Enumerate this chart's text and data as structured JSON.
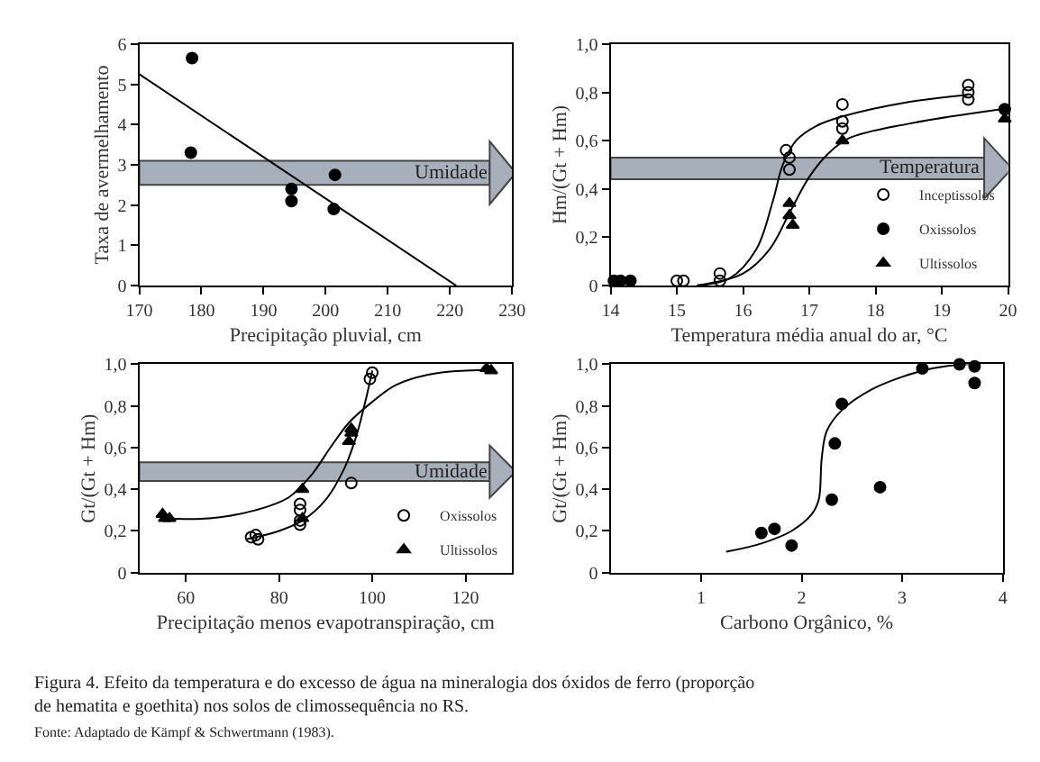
{
  "chart_data": [
    {
      "type": "scatter",
      "xlabel": "Precipitação pluvial, cm",
      "ylabel": "Taxa de avermelhamento",
      "xlim": [
        170,
        230
      ],
      "xticks": [
        170,
        180,
        190,
        200,
        210,
        220,
        230
      ],
      "ylim": [
        0,
        6
      ],
      "yticks": [
        0,
        1,
        2,
        3,
        4,
        5,
        6
      ],
      "grid": false,
      "legend": false,
      "series": [
        {
          "color": "#000000",
          "marker": "circle",
          "x": [
            178.5,
            178.3,
            194.5,
            194.5,
            201.5,
            201.3
          ],
          "values": [
            5.65,
            3.3,
            2.4,
            2.1,
            2.75,
            1.9
          ]
        },
        {
          "type": "line",
          "color": "#000000",
          "x": [
            170,
            221
          ],
          "values": [
            5.25,
            0
          ]
        }
      ],
      "bands": [
        {
          "axis": "y",
          "from": 2.5,
          "to": 3.1,
          "label": "Umidade",
          "color": "#a7afbb"
        }
      ]
    },
    {
      "type": "scatter",
      "xlabel": "Temperatura média anual do ar, °C",
      "ylabel": "Hm/(Gt + Hm)",
      "xlim": [
        14,
        20
      ],
      "xticks": [
        14,
        15,
        16,
        17,
        18,
        19,
        20
      ],
      "ylim": [
        0,
        1
      ],
      "yticks": [
        0,
        {
          "value": 0.2,
          "label": "0,2"
        },
        {
          "value": 0.4,
          "label": "0,4"
        },
        {
          "value": 0.6,
          "label": "0,6"
        },
        {
          "value": 0.8,
          "label": "0,8"
        },
        {
          "value": 1,
          "label": "1,0"
        }
      ],
      "grid": false,
      "legend": "bottom right",
      "series": [
        {
          "name": "Inceptissolos",
          "color": "#000000",
          "marker": "circle-open",
          "x": [
            15.0,
            15.1,
            15.65,
            15.65,
            16.65,
            16.7,
            16.7,
            17.5,
            17.5,
            17.5,
            19.4,
            19.4,
            19.4
          ],
          "values": [
            0.02,
            0.02,
            0.05,
            0.02,
            0.56,
            0.53,
            0.48,
            0.75,
            0.68,
            0.65,
            0.83,
            0.8,
            0.77
          ]
        },
        {
          "name": "Oxissolos",
          "color": "#000000",
          "marker": "circle",
          "x": [
            14.05,
            14.15,
            14.3,
            19.95
          ],
          "values": [
            0.02,
            0.02,
            0.02,
            0.73
          ]
        },
        {
          "name": "Ultissolos",
          "color": "#000000",
          "marker": "triangle",
          "x": [
            16.7,
            16.7,
            16.75,
            17.5,
            19.95
          ],
          "values": [
            0.34,
            0.29,
            0.25,
            0.6,
            0.69
          ]
        },
        {
          "type": "line",
          "color": "#000000",
          "x": [
            15.3,
            15.8,
            16.2,
            16.45,
            16.6,
            16.8,
            17.1,
            17.5,
            18.5,
            19.4
          ],
          "values": [
            0,
            0.03,
            0.15,
            0.35,
            0.5,
            0.6,
            0.66,
            0.7,
            0.76,
            0.79
          ]
        },
        {
          "type": "line",
          "color": "#000000",
          "x": [
            15.3,
            16.0,
            16.4,
            16.7,
            17.0,
            17.3,
            17.6,
            18.5,
            19.9
          ],
          "values": [
            0,
            0.05,
            0.15,
            0.3,
            0.45,
            0.55,
            0.61,
            0.67,
            0.73
          ]
        }
      ],
      "bands": [
        {
          "axis": "y",
          "from": 0.44,
          "to": 0.53,
          "label": "Temperatura",
          "color": "#a7afbb"
        }
      ]
    },
    {
      "type": "scatter",
      "xlabel": "Precipitação menos evapotranspiração, cm",
      "ylabel": "Gt/(Gt + Hm)",
      "xlim": [
        50,
        130
      ],
      "xticks": [
        60,
        80,
        100,
        120
      ],
      "ylim": [
        0,
        1
      ],
      "yticks": [
        0,
        {
          "value": 0.2,
          "label": "0,2"
        },
        {
          "value": 0.4,
          "label": "0,4"
        },
        {
          "value": 0.6,
          "label": "0,6"
        },
        {
          "value": 0.8,
          "label": "0,8"
        },
        {
          "value": 1,
          "label": "1,0"
        }
      ],
      "grid": false,
      "legend": "bottom right",
      "series": [
        {
          "name": "Oxissolos",
          "color": "#000000",
          "marker": "circle-open",
          "x": [
            74,
            75,
            75.5,
            84.5,
            84.5,
            84.5,
            84.5,
            95.5,
            99.5,
            100
          ],
          "values": [
            0.17,
            0.18,
            0.16,
            0.33,
            0.3,
            0.25,
            0.23,
            0.43,
            0.93,
            0.96
          ]
        },
        {
          "name": "Ultissolos",
          "color": "#000000",
          "marker": "triangle",
          "x": [
            55,
            55.5,
            56.5,
            85,
            85,
            95,
            95.5,
            95.5,
            124.5,
            125.5
          ],
          "values": [
            0.28,
            0.26,
            0.26,
            0.4,
            0.26,
            0.63,
            0.67,
            0.69,
            0.98,
            0.97
          ]
        },
        {
          "type": "line",
          "color": "#000000",
          "x": [
            73,
            80,
            85,
            90,
            94,
            96.5,
            98.5,
            100
          ],
          "values": [
            0.16,
            0.2,
            0.25,
            0.35,
            0.5,
            0.65,
            0.82,
            0.97
          ]
        },
        {
          "type": "line",
          "color": "#000000",
          "x": [
            55,
            65,
            75,
            82,
            87,
            91,
            95,
            100,
            105,
            112,
            120,
            126
          ],
          "values": [
            0.26,
            0.26,
            0.3,
            0.36,
            0.47,
            0.6,
            0.72,
            0.82,
            0.9,
            0.95,
            0.97,
            0.97
          ]
        }
      ],
      "bands": [
        {
          "axis": "y",
          "from": 0.44,
          "to": 0.53,
          "label": "Umidade",
          "color": "#a7afbb"
        }
      ]
    },
    {
      "type": "scatter",
      "xlabel": "Carbono Orgânico, %",
      "ylabel": "Gt/(Gt + Hm)",
      "xlim": [
        0.1,
        4
      ],
      "xticks": [
        1,
        2,
        3,
        4
      ],
      "ylim": [
        0,
        1
      ],
      "yticks": [
        0,
        {
          "value": 0.2,
          "label": "0,2"
        },
        {
          "value": 0.4,
          "label": "0,4"
        },
        {
          "value": 0.6,
          "label": "0,6"
        },
        {
          "value": 0.8,
          "label": "0,8"
        },
        {
          "value": 1,
          "label": "1,0"
        }
      ],
      "grid": false,
      "legend": false,
      "series": [
        {
          "color": "#000000",
          "marker": "circle",
          "x": [
            1.6,
            1.73,
            1.9,
            2.3,
            2.33,
            2.4,
            2.78,
            3.2,
            3.57,
            3.72,
            3.72
          ],
          "values": [
            0.19,
            0.21,
            0.13,
            0.35,
            0.62,
            0.81,
            0.41,
            0.98,
            1.0,
            0.99,
            0.91
          ]
        },
        {
          "type": "line",
          "color": "#000000",
          "x": [
            1.25,
            1.6,
            1.9,
            2.1,
            2.17,
            2.2,
            2.25,
            2.4,
            2.7,
            3.0,
            3.3,
            3.6,
            3.75
          ],
          "values": [
            0.1,
            0.14,
            0.2,
            0.28,
            0.35,
            0.55,
            0.68,
            0.78,
            0.88,
            0.94,
            0.98,
            1.0,
            1.0
          ]
        }
      ],
      "annotations": [
        "Figura 4. Efeito da temperatura e do excesso de água na mineralogia dos óxidos de ferro (proporção de hematita e goethita) nos solos de climossequência no RS.",
        "Fonte: Adaptado de Kämpf & Schwertmann (1983)."
      ]
    }
  ]
}
